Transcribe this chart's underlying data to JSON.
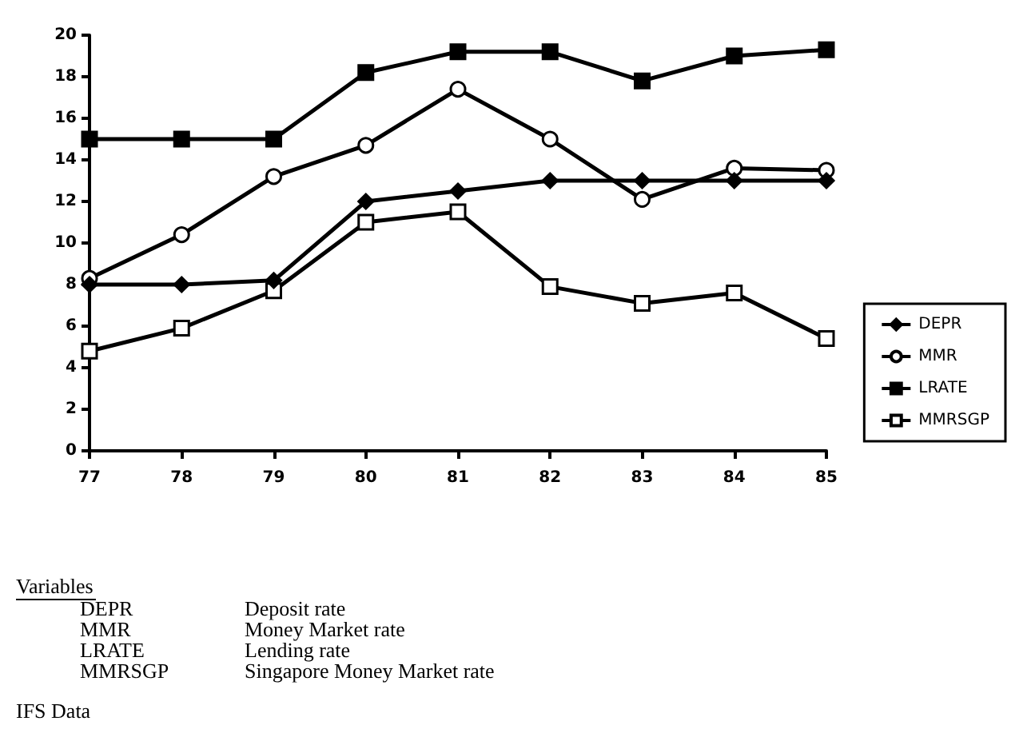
{
  "chart_data": {
    "type": "line",
    "categories": [
      "77",
      "78",
      "79",
      "80",
      "81",
      "82",
      "83",
      "84",
      "85"
    ],
    "series": [
      {
        "name": "DEPR",
        "color": "#000000",
        "marker": "diamond",
        "values": [
          8,
          8,
          8.2,
          12,
          12.5,
          13,
          13,
          13,
          13
        ]
      },
      {
        "name": "MMR",
        "color": "#000000",
        "marker": "circle-open",
        "values": [
          8.3,
          10.4,
          13.2,
          14.7,
          17.4,
          15,
          12.1,
          13.6,
          13.5
        ]
      },
      {
        "name": "LRATE",
        "color": "#000000",
        "marker": "square",
        "values": [
          15,
          15,
          15,
          18.2,
          19.2,
          19.2,
          17.8,
          19,
          19.3
        ]
      },
      {
        "name": "MMRSGP",
        "color": "#000000",
        "marker": "square-open",
        "values": [
          4.8,
          5.9,
          7.7,
          11,
          11.5,
          7.9,
          7.1,
          7.6,
          5.4
        ]
      }
    ],
    "ylim": [
      0,
      20
    ],
    "yticks": [
      0,
      2,
      4,
      6,
      8,
      10,
      12,
      14,
      16,
      18,
      20
    ],
    "grid": false,
    "legend": "right",
    "line_style": "solid",
    "annotations": [
      "Variables",
      "DEPR",
      "Deposit rate",
      "MMR",
      "Money Market rate",
      "LRATE",
      "Lending rate",
      "MMRSGP",
      "Singapore Money Market rate",
      "IFS Data"
    ]
  }
}
